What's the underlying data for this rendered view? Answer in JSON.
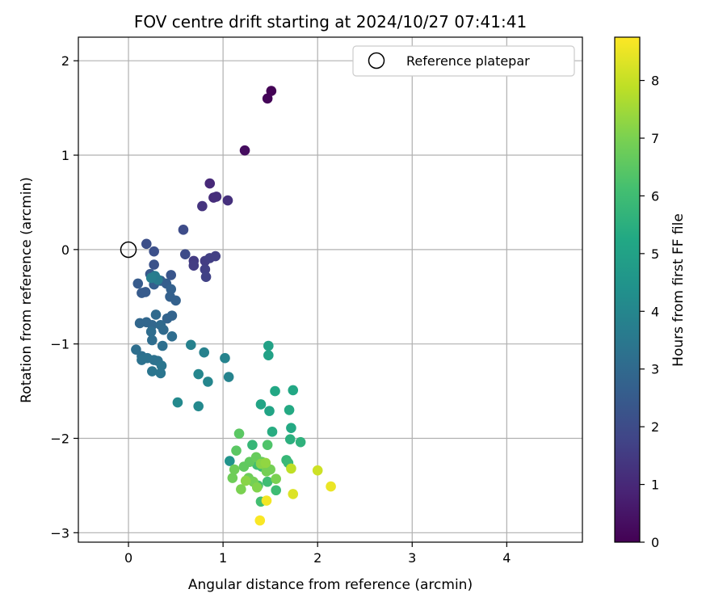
{
  "chart_data": {
    "type": "scatter",
    "title": "FOV centre drift starting at 2024/10/27 07:41:41",
    "xlabel": "Angular distance from reference (arcmin)",
    "ylabel": "Rotation from reference (arcmin)",
    "xlim": [
      -0.53,
      4.8
    ],
    "ylim": [
      -3.1,
      2.25
    ],
    "xticks": [
      "0",
      "1",
      "2",
      "3",
      "4"
    ],
    "yticks": [
      "−3",
      "−2",
      "−1",
      "0",
      "1",
      "2"
    ],
    "grid": true,
    "legend": {
      "position": "top-right",
      "entries": [
        "Reference platepar"
      ]
    },
    "reference_point": {
      "x": 0,
      "y": 0
    },
    "colorbar": {
      "label": "Hours from first FF file",
      "range": [
        0,
        8.75
      ],
      "ticks": [
        "0",
        "1",
        "2",
        "3",
        "4",
        "5",
        "6",
        "7",
        "8"
      ],
      "colormap": "viridis"
    },
    "points": [
      {
        "x": 1.51,
        "y": 1.68,
        "h": 0.05
      },
      {
        "x": 1.47,
        "y": 1.6,
        "h": 0.1
      },
      {
        "x": 1.23,
        "y": 1.05,
        "h": 0.3
      },
      {
        "x": 0.86,
        "y": 0.7,
        "h": 1.0
      },
      {
        "x": 0.9,
        "y": 0.55,
        "h": 1.1
      },
      {
        "x": 0.93,
        "y": 0.56,
        "h": 1.15
      },
      {
        "x": 1.05,
        "y": 0.52,
        "h": 1.2
      },
      {
        "x": 0.78,
        "y": 0.46,
        "h": 1.3
      },
      {
        "x": 0.69,
        "y": -0.12,
        "h": 1.5
      },
      {
        "x": 0.69,
        "y": -0.17,
        "h": 1.55
      },
      {
        "x": 0.81,
        "y": -0.12,
        "h": 1.55
      },
      {
        "x": 0.86,
        "y": -0.09,
        "h": 1.6
      },
      {
        "x": 0.92,
        "y": -0.07,
        "h": 1.6
      },
      {
        "x": 0.81,
        "y": -0.21,
        "h": 1.65
      },
      {
        "x": 0.82,
        "y": -0.29,
        "h": 1.7
      },
      {
        "x": 0.58,
        "y": 0.21,
        "h": 2.0
      },
      {
        "x": 0.6,
        "y": -0.05,
        "h": 2.0
      },
      {
        "x": 0.19,
        "y": 0.06,
        "h": 2.1
      },
      {
        "x": 0.27,
        "y": -0.02,
        "h": 2.15
      },
      {
        "x": 0.27,
        "y": -0.16,
        "h": 2.2
      },
      {
        "x": 0.45,
        "y": -0.27,
        "h": 2.3
      },
      {
        "x": 0.23,
        "y": -0.26,
        "h": 2.4
      },
      {
        "x": 0.1,
        "y": -0.36,
        "h": 2.5
      },
      {
        "x": 0.14,
        "y": -0.46,
        "h": 2.5
      },
      {
        "x": 0.18,
        "y": -0.45,
        "h": 2.5
      },
      {
        "x": 0.27,
        "y": -0.37,
        "h": 2.6
      },
      {
        "x": 0.34,
        "y": -0.33,
        "h": 2.6
      },
      {
        "x": 0.4,
        "y": -0.36,
        "h": 2.6
      },
      {
        "x": 0.45,
        "y": -0.42,
        "h": 2.7
      },
      {
        "x": 0.44,
        "y": -0.5,
        "h": 2.7
      },
      {
        "x": 0.5,
        "y": -0.54,
        "h": 2.7
      },
      {
        "x": 0.46,
        "y": -0.7,
        "h": 2.8
      },
      {
        "x": 0.41,
        "y": -0.73,
        "h": 2.8
      },
      {
        "x": 0.12,
        "y": -0.78,
        "h": 2.9
      },
      {
        "x": 0.19,
        "y": -0.77,
        "h": 2.9
      },
      {
        "x": 0.25,
        "y": -0.8,
        "h": 2.9
      },
      {
        "x": 0.29,
        "y": -0.69,
        "h": 3.0
      },
      {
        "x": 0.34,
        "y": -0.8,
        "h": 3.0
      },
      {
        "x": 0.37,
        "y": -0.85,
        "h": 3.0
      },
      {
        "x": 0.24,
        "y": -0.87,
        "h": 3.1
      },
      {
        "x": 0.25,
        "y": -0.96,
        "h": 3.1
      },
      {
        "x": 0.46,
        "y": -0.92,
        "h": 3.1
      },
      {
        "x": 0.36,
        "y": -1.02,
        "h": 3.2
      },
      {
        "x": 0.08,
        "y": -1.06,
        "h": 3.2
      },
      {
        "x": 0.14,
        "y": -1.13,
        "h": 3.2
      },
      {
        "x": 0.14,
        "y": -1.17,
        "h": 3.3
      },
      {
        "x": 0.2,
        "y": -1.15,
        "h": 3.3
      },
      {
        "x": 0.27,
        "y": -1.17,
        "h": 3.3
      },
      {
        "x": 0.31,
        "y": -1.18,
        "h": 3.3
      },
      {
        "x": 0.35,
        "y": -1.23,
        "h": 3.4
      },
      {
        "x": 0.25,
        "y": -1.29,
        "h": 3.4
      },
      {
        "x": 0.34,
        "y": -1.31,
        "h": 3.4
      },
      {
        "x": 0.28,
        "y": -0.28,
        "h": 3.6
      },
      {
        "x": 0.31,
        "y": -0.32,
        "h": 3.6
      },
      {
        "x": 0.24,
        "y": -0.3,
        "h": 3.7
      },
      {
        "x": 0.66,
        "y": -1.01,
        "h": 3.8
      },
      {
        "x": 0.8,
        "y": -1.09,
        "h": 3.8
      },
      {
        "x": 1.02,
        "y": -1.15,
        "h": 3.9
      },
      {
        "x": 1.06,
        "y": -1.35,
        "h": 3.9
      },
      {
        "x": 0.74,
        "y": -1.32,
        "h": 4.0
      },
      {
        "x": 0.84,
        "y": -1.4,
        "h": 4.0
      },
      {
        "x": 0.52,
        "y": -1.62,
        "h": 4.1
      },
      {
        "x": 0.74,
        "y": -1.66,
        "h": 4.1
      },
      {
        "x": 1.07,
        "y": -2.24,
        "h": 4.5
      },
      {
        "x": 1.48,
        "y": -1.02,
        "h": 5.0
      },
      {
        "x": 1.48,
        "y": -1.12,
        "h": 5.0
      },
      {
        "x": 1.4,
        "y": -1.64,
        "h": 5.1
      },
      {
        "x": 1.49,
        "y": -1.71,
        "h": 5.1
      },
      {
        "x": 1.55,
        "y": -1.5,
        "h": 5.2
      },
      {
        "x": 1.74,
        "y": -1.49,
        "h": 5.2
      },
      {
        "x": 1.7,
        "y": -1.7,
        "h": 5.3
      },
      {
        "x": 1.72,
        "y": -1.89,
        "h": 5.3
      },
      {
        "x": 1.52,
        "y": -1.93,
        "h": 5.4
      },
      {
        "x": 1.71,
        "y": -2.01,
        "h": 5.5
      },
      {
        "x": 1.82,
        "y": -2.04,
        "h": 5.6
      },
      {
        "x": 1.31,
        "y": -2.07,
        "h": 5.8
      },
      {
        "x": 1.67,
        "y": -2.23,
        "h": 5.8
      },
      {
        "x": 1.69,
        "y": -2.26,
        "h": 5.9
      },
      {
        "x": 1.41,
        "y": -2.3,
        "h": 6.0
      },
      {
        "x": 1.36,
        "y": -2.28,
        "h": 6.0
      },
      {
        "x": 1.47,
        "y": -2.46,
        "h": 6.0
      },
      {
        "x": 1.56,
        "y": -2.55,
        "h": 6.0
      },
      {
        "x": 1.4,
        "y": -2.67,
        "h": 6.1
      },
      {
        "x": 1.37,
        "y": -2.5,
        "h": 6.1
      },
      {
        "x": 1.47,
        "y": -2.07,
        "h": 6.3
      },
      {
        "x": 1.17,
        "y": -1.95,
        "h": 6.5
      },
      {
        "x": 1.14,
        "y": -2.13,
        "h": 6.5
      },
      {
        "x": 1.22,
        "y": -2.3,
        "h": 6.6
      },
      {
        "x": 1.28,
        "y": -2.25,
        "h": 6.6
      },
      {
        "x": 1.35,
        "y": -2.2,
        "h": 6.7
      },
      {
        "x": 1.41,
        "y": -2.25,
        "h": 6.7
      },
      {
        "x": 1.12,
        "y": -2.33,
        "h": 6.8
      },
      {
        "x": 1.1,
        "y": -2.42,
        "h": 6.8
      },
      {
        "x": 1.27,
        "y": -2.42,
        "h": 6.8
      },
      {
        "x": 1.32,
        "y": -2.46,
        "h": 6.9
      },
      {
        "x": 1.46,
        "y": -2.35,
        "h": 6.9
      },
      {
        "x": 1.5,
        "y": -2.33,
        "h": 6.9
      },
      {
        "x": 1.56,
        "y": -2.43,
        "h": 7.0
      },
      {
        "x": 1.19,
        "y": -2.54,
        "h": 7.0
      },
      {
        "x": 1.36,
        "y": -2.52,
        "h": 7.1
      },
      {
        "x": 1.24,
        "y": -2.45,
        "h": 7.2
      },
      {
        "x": 1.4,
        "y": -2.27,
        "h": 7.2
      },
      {
        "x": 1.45,
        "y": -2.26,
        "h": 7.3
      },
      {
        "x": 1.72,
        "y": -2.32,
        "h": 7.9
      },
      {
        "x": 2.0,
        "y": -2.34,
        "h": 8.1
      },
      {
        "x": 1.74,
        "y": -2.59,
        "h": 8.3
      },
      {
        "x": 2.14,
        "y": -2.51,
        "h": 8.5
      },
      {
        "x": 1.46,
        "y": -2.66,
        "h": 8.6
      },
      {
        "x": 1.39,
        "y": -2.87,
        "h": 8.7
      }
    ]
  }
}
